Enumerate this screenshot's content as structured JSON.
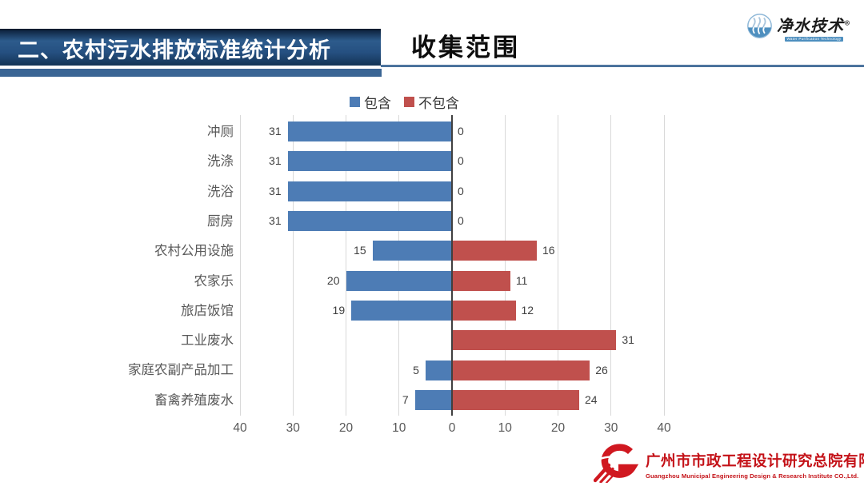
{
  "header": {
    "section_title": "二、农村污水排放标准统计分析",
    "page_title": "收集范围",
    "brand": {
      "name": "净水技术",
      "reg_mark": "®",
      "tagline": "Water Purification Technology"
    }
  },
  "chart_data": {
    "type": "bar",
    "variant": "horizontal-diverging",
    "title": "收集范围",
    "categories": [
      "冲厕",
      "洗涤",
      "洗浴",
      "厨房",
      "农村公用设施",
      "农家乐",
      "旅店饭馆",
      "工业废水",
      "家庭农副产品加工",
      "畜禽养殖废水"
    ],
    "series": [
      {
        "name": "包含",
        "color": "#4d7cb5",
        "side": "left",
        "values": [
          31,
          31,
          31,
          31,
          15,
          20,
          19,
          0,
          5,
          7
        ]
      },
      {
        "name": "不包含",
        "color": "#c0504d",
        "side": "right",
        "values": [
          0,
          0,
          0,
          0,
          16,
          11,
          12,
          31,
          26,
          24
        ]
      }
    ],
    "xlim": [
      -40,
      40
    ],
    "x_tick_values": [
      -40,
      -30,
      -20,
      -10,
      0,
      10,
      20,
      30,
      40
    ],
    "x_tick_labels": [
      "40",
      "30",
      "20",
      "10",
      "0",
      "10",
      "20",
      "30",
      "40"
    ],
    "grid": true,
    "legend_position": "top-center",
    "value_labels": "outside-end"
  },
  "footer": {
    "company_cn": "广州市市政工程设计研究总院有限公司",
    "company_en": "Guangzhou Municipal Engineering Design & Research Institute CO.,Ltd."
  },
  "colors": {
    "bar_blue": "#4d7cb5",
    "bar_red": "#c0504d",
    "substrip_blue": "#3a6594",
    "axis_line": "#404040",
    "gridline": "#d9d9d9",
    "text_gray": "#595959",
    "value_gray": "#3f3f3f",
    "company_red": "#c41218",
    "brand_blue": "#4e8fbf"
  }
}
